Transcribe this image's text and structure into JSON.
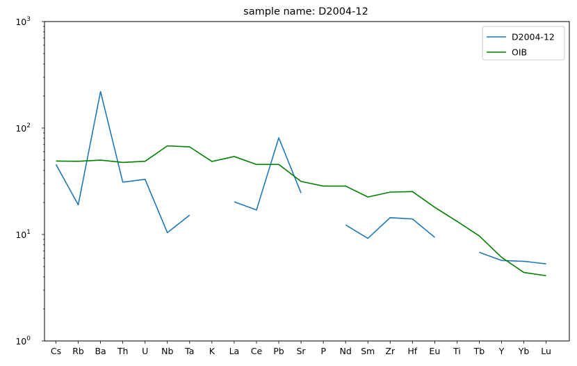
{
  "chart_data": {
    "type": "line",
    "title": "sample name: D2004-12",
    "xlabel": "",
    "ylabel": "",
    "yscale": "log",
    "ylim": [
      1,
      1000
    ],
    "y_ticks": [
      {
        "value": 1,
        "label": "10",
        "exp": "0"
      },
      {
        "value": 10,
        "label": "10",
        "exp": "1"
      },
      {
        "value": 100,
        "label": "10",
        "exp": "2"
      },
      {
        "value": 1000,
        "label": "10",
        "exp": "3"
      }
    ],
    "categories": [
      "Cs",
      "Rb",
      "Ba",
      "Th",
      "U",
      "Nb",
      "Ta",
      "K",
      "La",
      "Ce",
      "Pb",
      "Sr",
      "P",
      "Nd",
      "Sm",
      "Zr",
      "Hf",
      "Eu",
      "Ti",
      "Tb",
      "Y",
      "Yb",
      "Lu"
    ],
    "legend_position": "top-right",
    "grid": false,
    "series": [
      {
        "name": "D2004-12",
        "color": "#1f77b4",
        "values": [
          45.5,
          19,
          220,
          31,
          33,
          10.4,
          15.2,
          null,
          20.3,
          17,
          81,
          24.5,
          null,
          12.3,
          9.2,
          14.4,
          14,
          9.4,
          null,
          6.8,
          5.7,
          5.6,
          5.3
        ]
      },
      {
        "name": "OIB",
        "color": "#008000",
        "values": [
          49,
          48.7,
          50,
          47.5,
          48.7,
          68,
          66.5,
          48.5,
          54,
          45.5,
          45.5,
          31.5,
          28.5,
          28.5,
          22.5,
          25,
          25.3,
          18,
          13.3,
          9.7,
          6.1,
          4.4,
          4.1
        ]
      }
    ]
  }
}
